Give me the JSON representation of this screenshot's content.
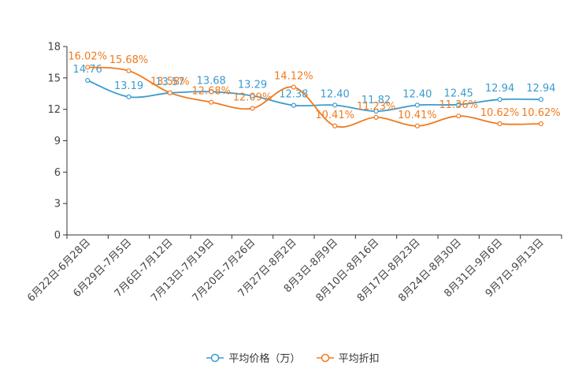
{
  "chart_data": {
    "type": "line",
    "categories": [
      "6月22日-6月28日",
      "6月29日-7月5日",
      "7月6日-7月12日",
      "7月13日-7月19日",
      "7月20日-7月26日",
      "7月27日-8月2日",
      "8月3日-8月9日",
      "8月10日-8月16日",
      "8月17日-8月23日",
      "8月24日-8月30日",
      "8月31日-9月6日",
      "9月7日-9月13日"
    ],
    "ylim": [
      0,
      18
    ],
    "yticks": [
      "0",
      "3",
      "6",
      "9",
      "12",
      "15",
      "18"
    ],
    "series": [
      {
        "name": "平均价格（万）",
        "color": "#3a9bd0",
        "values": [
          14.76,
          13.19,
          13.57,
          13.68,
          13.29,
          12.38,
          12.4,
          11.82,
          12.4,
          12.45,
          12.94,
          12.94
        ],
        "labels": [
          "14.76",
          "13.19",
          "13.57",
          "13.68",
          "13.29",
          "12.38",
          "12.40",
          "11.82",
          "12.40",
          "12.45",
          "12.94",
          "12.94"
        ]
      },
      {
        "name": "平均折扣",
        "color": "#f07a1e",
        "values": [
          16.02,
          15.68,
          13.58,
          12.68,
          12.09,
          14.12,
          10.41,
          11.23,
          10.41,
          11.36,
          10.62,
          10.62
        ],
        "labels": [
          "16.02%",
          "15.68%",
          "13.58%",
          "12.68%",
          "12.09%",
          "14.12%",
          "10.41%",
          "11.23%",
          "10.41%",
          "11.36%",
          "10.62%",
          "10.62%"
        ]
      }
    ]
  },
  "legend": {
    "price": "平均价格（万）",
    "discount": "平均折扣"
  }
}
